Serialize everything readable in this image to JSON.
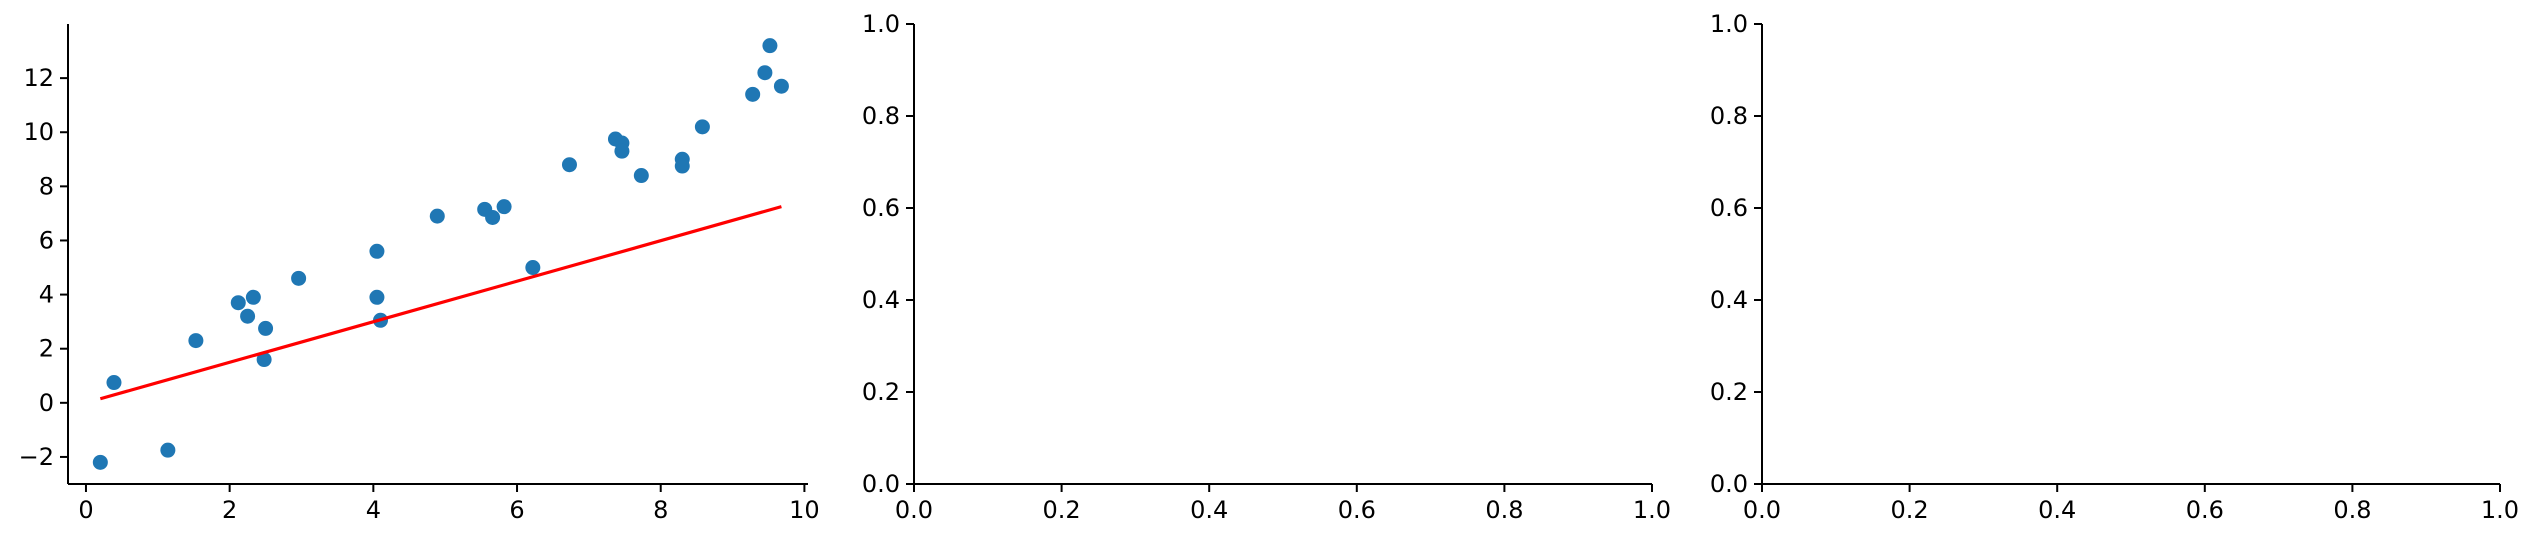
{
  "chart_data": [
    {
      "type": "scatter",
      "title": "",
      "xlabel": "",
      "ylabel": "",
      "xlim": [
        -0.25,
        10.05
      ],
      "ylim": [
        -3,
        14
      ],
      "xticks": [
        0,
        2,
        4,
        6,
        8,
        10
      ],
      "yticks": [
        -2,
        0,
        2,
        4,
        6,
        8,
        10,
        12
      ],
      "xtick_labels": [
        "0",
        "2",
        "4",
        "6",
        "8",
        "10"
      ],
      "ytick_labels": [
        "−2",
        "0",
        "2",
        "4",
        "6",
        "8",
        "10",
        "12"
      ],
      "grid": false,
      "series": [
        {
          "kind": "scatter",
          "color": "#1f77b4",
          "points": [
            [
              0.2,
              -2.2
            ],
            [
              0.39,
              0.75
            ],
            [
              1.14,
              -1.75
            ],
            [
              1.53,
              2.3
            ],
            [
              2.12,
              3.7
            ],
            [
              2.25,
              3.2
            ],
            [
              2.33,
              3.9
            ],
            [
              2.48,
              1.6
            ],
            [
              2.5,
              2.75
            ],
            [
              2.96,
              4.6
            ],
            [
              4.05,
              3.9
            ],
            [
              4.05,
              5.6
            ],
            [
              4.1,
              3.05
            ],
            [
              4.89,
              6.9
            ],
            [
              5.55,
              7.15
            ],
            [
              5.66,
              6.85
            ],
            [
              5.82,
              7.25
            ],
            [
              6.22,
              5.0
            ],
            [
              6.73,
              8.8
            ],
            [
              7.37,
              9.75
            ],
            [
              7.46,
              9.6
            ],
            [
              7.46,
              9.3
            ],
            [
              7.73,
              8.4
            ],
            [
              8.3,
              9.0
            ],
            [
              8.3,
              8.75
            ],
            [
              8.58,
              10.2
            ],
            [
              9.28,
              11.4
            ],
            [
              9.45,
              12.2
            ],
            [
              9.52,
              13.2
            ],
            [
              9.68,
              11.7
            ]
          ]
        },
        {
          "kind": "line",
          "color": "#ff0000",
          "points": [
            [
              0.2,
              0.15
            ],
            [
              9.68,
              7.25
            ]
          ]
        }
      ]
    },
    {
      "type": "scatter",
      "title": "",
      "xlabel": "",
      "ylabel": "",
      "xlim": [
        0,
        1
      ],
      "ylim": [
        0,
        1
      ],
      "xticks": [
        0,
        0.2,
        0.4,
        0.6,
        0.8,
        1.0
      ],
      "yticks": [
        0,
        0.2,
        0.4,
        0.6,
        0.8,
        1.0
      ],
      "xtick_labels": [
        "0.0",
        "0.2",
        "0.4",
        "0.6",
        "0.8",
        "1.0"
      ],
      "ytick_labels": [
        "0.0",
        "0.2",
        "0.4",
        "0.6",
        "0.8",
        "1.0"
      ],
      "grid": false,
      "series": []
    },
    {
      "type": "scatter",
      "title": "",
      "xlabel": "",
      "ylabel": "",
      "xlim": [
        0,
        1
      ],
      "ylim": [
        0,
        1
      ],
      "xticks": [
        0,
        0.2,
        0.4,
        0.6,
        0.8,
        1.0
      ],
      "yticks": [
        0,
        0.2,
        0.4,
        0.6,
        0.8,
        1.0
      ],
      "xtick_labels": [
        "0.0",
        "0.2",
        "0.4",
        "0.6",
        "0.8",
        "1.0"
      ],
      "ytick_labels": [
        "0.0",
        "0.2",
        "0.4",
        "0.6",
        "0.8",
        "1.0"
      ],
      "grid": false,
      "series": []
    }
  ]
}
